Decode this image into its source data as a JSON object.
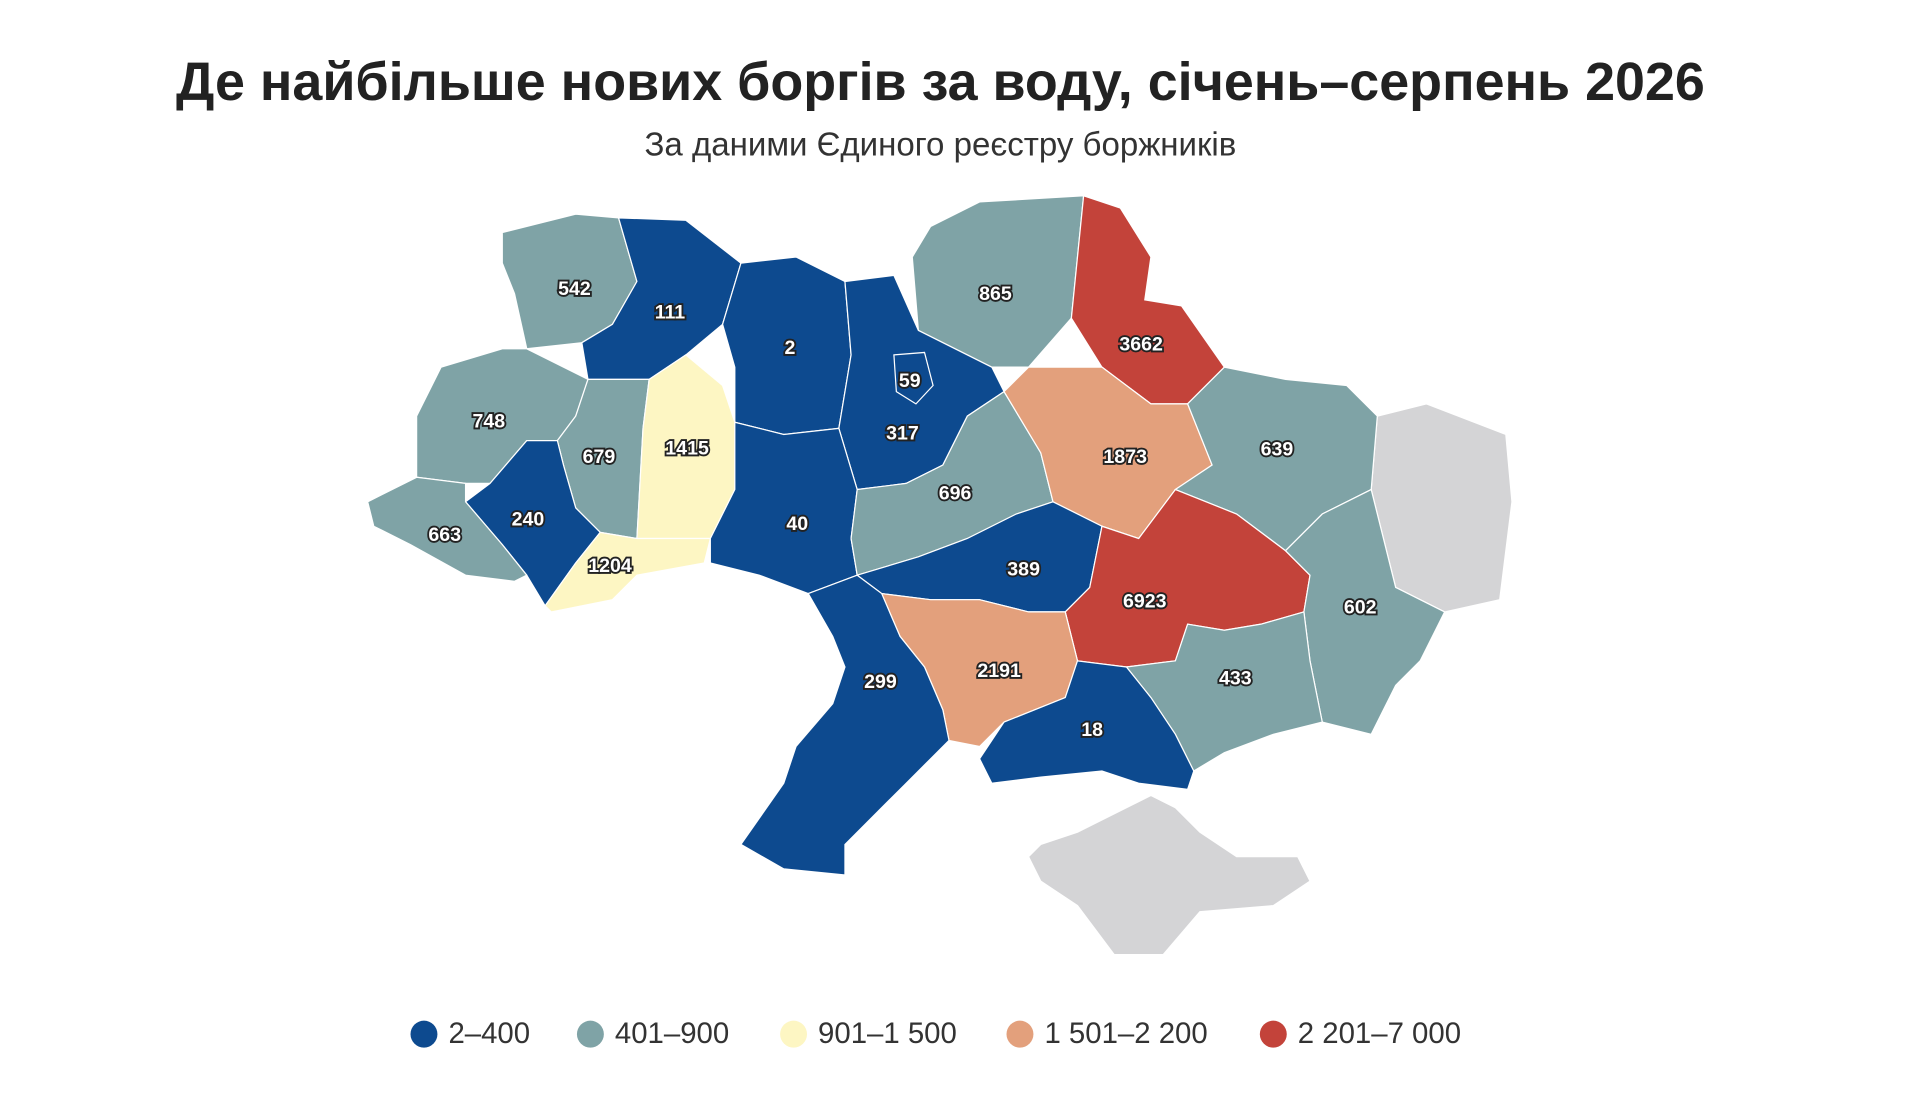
{
  "title": "Де найбільше нових боргів за воду, січень–серпень 2026",
  "subtitle": "За даними Єдиного реєстру боржників",
  "map": {
    "regions": [
      {
        "value": 542,
        "color": "#7fa3a6"
      },
      {
        "value": 111,
        "color": "#0d4a8f"
      },
      {
        "value": 2,
        "color": "#0d4a8f"
      },
      {
        "value": 865,
        "color": "#7fa3a6"
      },
      {
        "value": 3662,
        "color": "#c3433a"
      },
      {
        "value": 317,
        "color": "#0d4a8f"
      },
      {
        "value": 59,
        "color": "#0d4a8f"
      },
      {
        "value": 748,
        "color": "#7fa3a6"
      },
      {
        "value": 679,
        "color": "#7fa3a6"
      },
      {
        "value": 1415,
        "color": "#fdf6c3"
      },
      {
        "value": 240,
        "color": "#0d4a8f"
      },
      {
        "value": 663,
        "color": "#7fa3a6"
      },
      {
        "value": 1204,
        "color": "#fdf6c3"
      },
      {
        "value": 40,
        "color": "#0d4a8f"
      },
      {
        "value": 696,
        "color": "#7fa3a6"
      },
      {
        "value": 1873,
        "color": "#e3a07c"
      },
      {
        "value": 639,
        "color": "#7fa3a6"
      },
      {
        "value": 389,
        "color": "#0d4a8f"
      },
      {
        "value": 6923,
        "color": "#c3433a"
      },
      {
        "value": 602,
        "color": "#7fa3a6"
      },
      {
        "value": 433,
        "color": "#7fa3a6"
      },
      {
        "value": 2191,
        "color": "#e3a07c"
      },
      {
        "value": 299,
        "color": "#0d4a8f"
      },
      {
        "value": 18,
        "color": "#0d4a8f"
      }
    ]
  },
  "legend": [
    {
      "label": "2–400",
      "color": "#0d4a8f"
    },
    {
      "label": "401–900",
      "color": "#7fa3a6"
    },
    {
      "label": "901–1 500",
      "color": "#fdf6c3"
    },
    {
      "label": "1 501–2 200",
      "color": "#e3a07c"
    },
    {
      "label": "2 201–7 000",
      "color": "#c3433a"
    }
  ]
}
